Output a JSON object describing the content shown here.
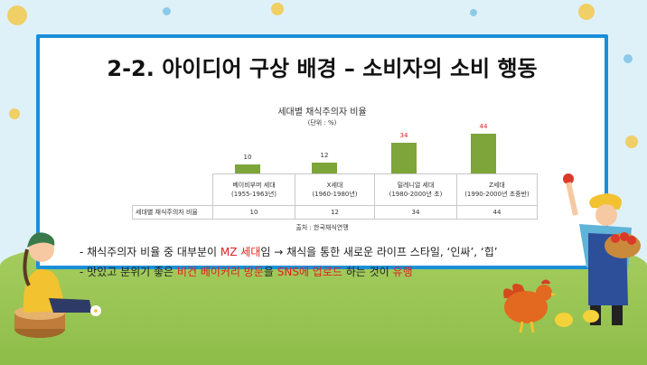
{
  "slide": {
    "title": "2-2. 아이디어 구상 배경 – 소비자의 소비 행동"
  },
  "chart_data": {
    "type": "bar",
    "title": "세대별 채식주의자 비율",
    "unit_note": "(단위 : %)",
    "categories": [
      {
        "name": "베이비부머 세대",
        "years": "(1955-1963년)"
      },
      {
        "name": "X세대",
        "years": "(1960-1980년)"
      },
      {
        "name": "밀레니얼 세대",
        "years": "(1980-2000년 초)"
      },
      {
        "name": "Z세대",
        "years": "(1990-2000년 초중반)"
      }
    ],
    "series": [
      {
        "name": "세대별 채식주의자 비율",
        "values": [
          10,
          12,
          34,
          44
        ]
      }
    ],
    "value_labels": [
      "10",
      "12",
      "34",
      "44"
    ],
    "highlight_color": "#e02020",
    "bar_color": "#7da53a",
    "source": "출처 : 한국채식연맹"
  },
  "bullets": [
    {
      "prefix": "- 채식주의자 비율 중 대부분이 ",
      "red": "MZ 세대",
      "suffix": "임 → 채식을 통한 새로운 라이프 스타일, ‘인싸’, ‘힙’"
    },
    {
      "prefix": "- 맛있고 분위기 좋은 ",
      "red1": "비건 베이커리 방문",
      "mid1": "을 ",
      "red2": "SNS에 업로드",
      "mid2": " 하는 것이 ",
      "red3": "유행"
    }
  ]
}
